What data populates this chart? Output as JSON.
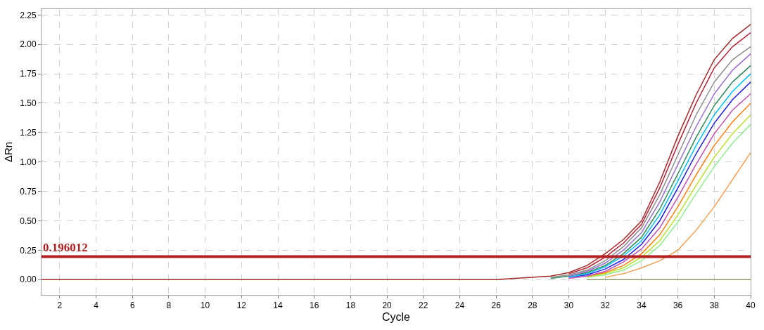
{
  "chart_data": {
    "type": "line",
    "xlabel": "Cycle",
    "ylabel": "ΔRn",
    "xlim": [
      1,
      40
    ],
    "xticks": [
      2,
      4,
      6,
      8,
      10,
      12,
      14,
      16,
      18,
      20,
      22,
      24,
      26,
      28,
      30,
      32,
      34,
      36,
      38,
      40
    ],
    "ylim": [
      -0.13,
      2.3
    ],
    "yticks": [
      {
        "value": 0,
        "label": "0.00"
      },
      {
        "value": 0.25,
        "label": "0.25"
      },
      {
        "value": 0.5,
        "label": "0.50"
      },
      {
        "value": 0.75,
        "label": "0.75"
      },
      {
        "value": 1,
        "label": "1.00"
      },
      {
        "value": 1.25,
        "label": "1.25"
      },
      {
        "value": 1.5,
        "label": "1.50"
      },
      {
        "value": 1.75,
        "label": "1.75"
      },
      {
        "value": 2,
        "label": "2.00"
      },
      {
        "value": 2.25,
        "label": "2.25"
      }
    ],
    "grid": true,
    "line_style": "solid",
    "marker": "none",
    "ref_lines": [
      {
        "axis": "y",
        "value": 0.196012,
        "label": "0.196012",
        "color": "#b22222"
      }
    ],
    "series": [
      {
        "color": "#8a9a6a",
        "x": [
          31,
          40
        ],
        "values": [
          0,
          0
        ]
      },
      {
        "color": "#f0a050",
        "x": [
          32,
          33,
          34,
          35,
          36,
          37,
          38,
          39,
          40
        ],
        "values": [
          0.02,
          0.05,
          0.1,
          0.16,
          0.25,
          0.42,
          0.62,
          0.85,
          1.08
        ]
      },
      {
        "color": "#90ee90",
        "x": [
          31,
          32,
          33,
          34,
          35,
          36,
          37,
          38,
          39,
          40
        ],
        "values": [
          0.02,
          0.04,
          0.08,
          0.16,
          0.29,
          0.49,
          0.73,
          0.96,
          1.16,
          1.32
        ]
      },
      {
        "color": "#b8e030",
        "x": [
          31,
          32,
          33,
          34,
          35,
          36,
          37,
          38,
          39,
          40
        ],
        "values": [
          0.02,
          0.05,
          0.1,
          0.19,
          0.33,
          0.55,
          0.8,
          1.04,
          1.24,
          1.4
        ]
      },
      {
        "color": "#ff7f0e",
        "x": [
          31,
          32,
          33,
          34,
          35,
          36,
          37,
          38,
          39,
          40
        ],
        "values": [
          0.03,
          0.06,
          0.12,
          0.22,
          0.38,
          0.62,
          0.89,
          1.14,
          1.34,
          1.5
        ]
      },
      {
        "color": "#c050b0",
        "x": [
          30,
          31,
          32,
          33,
          34,
          35,
          36,
          37,
          38,
          39,
          40
        ],
        "values": [
          0.01,
          0.03,
          0.07,
          0.15,
          0.26,
          0.44,
          0.7,
          0.98,
          1.24,
          1.44,
          1.58
        ]
      },
      {
        "color": "#2020e0",
        "x": [
          30,
          31,
          32,
          33,
          34,
          35,
          36,
          37,
          38,
          39,
          40
        ],
        "values": [
          0.02,
          0.04,
          0.09,
          0.17,
          0.3,
          0.5,
          0.78,
          1.07,
          1.33,
          1.53,
          1.68
        ]
      },
      {
        "color": "#00bfff",
        "x": [
          30,
          31,
          32,
          33,
          34,
          35,
          36,
          37,
          38,
          39,
          40
        ],
        "values": [
          0.02,
          0.05,
          0.11,
          0.2,
          0.33,
          0.55,
          0.84,
          1.14,
          1.4,
          1.6,
          1.75
        ]
      },
      {
        "color": "#2e8b57",
        "x": [
          29,
          30,
          31,
          32,
          33,
          34,
          35,
          36,
          37,
          38,
          39,
          40
        ],
        "values": [
          0.01,
          0.03,
          0.06,
          0.12,
          0.22,
          0.36,
          0.6,
          0.9,
          1.21,
          1.48,
          1.68,
          1.82
        ]
      },
      {
        "color": "#9b6fd0",
        "x": [
          30,
          31,
          32,
          33,
          34,
          35,
          36,
          37,
          38,
          39,
          40
        ],
        "values": [
          0.03,
          0.07,
          0.14,
          0.25,
          0.4,
          0.66,
          0.98,
          1.3,
          1.58,
          1.78,
          1.92
        ]
      },
      {
        "color": "#8c8c8c",
        "x": [
          29,
          30,
          31,
          32,
          33,
          34,
          35,
          36,
          37,
          38,
          39,
          40
        ],
        "values": [
          0.02,
          0.04,
          0.08,
          0.16,
          0.28,
          0.44,
          0.72,
          1.06,
          1.4,
          1.68,
          1.87,
          1.98
        ]
      },
      {
        "color": "#b22234",
        "x": [
          30,
          31,
          32,
          33,
          34,
          35,
          36,
          37,
          38,
          39,
          40
        ],
        "values": [
          0.05,
          0.1,
          0.19,
          0.31,
          0.47,
          0.78,
          1.15,
          1.5,
          1.8,
          1.98,
          2.1
        ]
      },
      {
        "color": "#a52a2a",
        "x": [
          1,
          25,
          26,
          27,
          28,
          29,
          30,
          31,
          32,
          33,
          34,
          35,
          36,
          37,
          38,
          39,
          40
        ],
        "values": [
          0,
          0,
          0.0,
          0.01,
          0.02,
          0.03,
          0.06,
          0.12,
          0.22,
          0.34,
          0.5,
          0.83,
          1.22,
          1.57,
          1.87,
          2.05,
          2.17
        ]
      }
    ]
  }
}
